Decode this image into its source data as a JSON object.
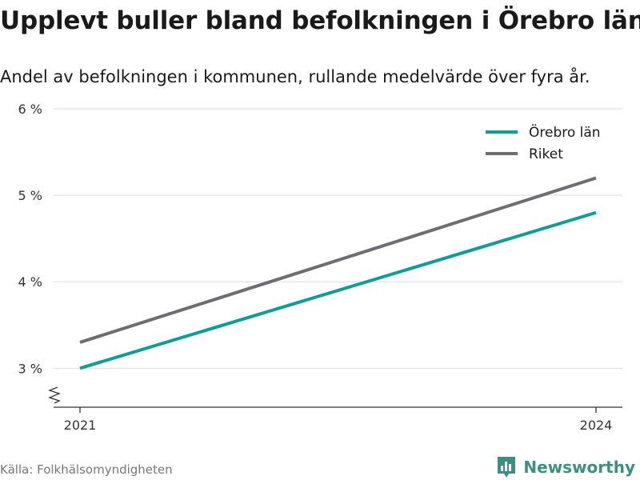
{
  "title": "Upplevt buller bland befolkningen i Örebro län",
  "subtitle": "Andel av befolkningen i kommunen, rullande medelvärde över fyra år.",
  "source": "Källa: Folkhälsomyndigheten",
  "brand": {
    "name": "Newsworthy",
    "icon": "newsworthy-logo-icon",
    "color": "#3d8f84"
  },
  "chart_data": {
    "type": "line",
    "title": "",
    "xlabel": "",
    "ylabel": "",
    "x": [
      2021,
      2024
    ],
    "x_tick_labels": [
      "2021",
      "2024"
    ],
    "ylim": [
      2.55,
      6
    ],
    "y_ticks": [
      3,
      4,
      5,
      6
    ],
    "y_tick_labels": [
      "3 %",
      "4 %",
      "5 %",
      "6 %"
    ],
    "y_axis_break": true,
    "grid": true,
    "legend_position": "top-right",
    "series": [
      {
        "name": "Örebro län",
        "values": [
          3.0,
          4.8
        ],
        "color": "#0f9e96"
      },
      {
        "name": "Riket",
        "values": [
          3.3,
          5.2
        ],
        "color": "#6e6d73"
      }
    ]
  }
}
